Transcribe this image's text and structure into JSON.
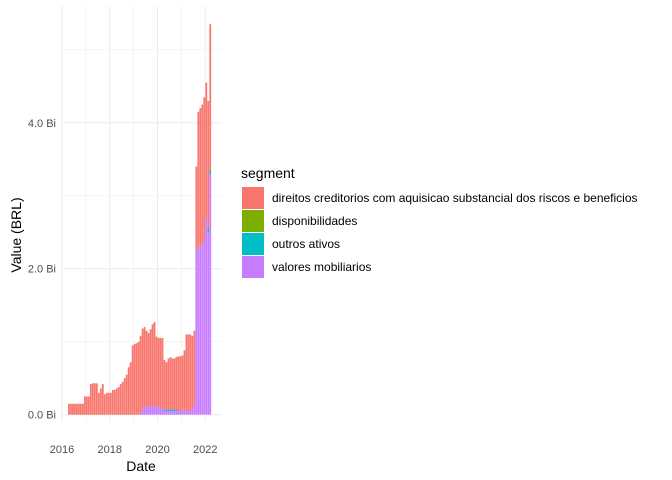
{
  "chart_data": {
    "type": "bar",
    "stacked": true,
    "xlabel": "Date",
    "ylabel": "Value (BRL)",
    "x_ticks": [
      "2016",
      "2018",
      "2020",
      "2022"
    ],
    "x_tick_values": [
      2016,
      2018,
      2020,
      2022
    ],
    "y_ticks": [
      "0.0 Bi",
      "2.0 Bi",
      "4.0 Bi"
    ],
    "y_tick_values": [
      0,
      2,
      4
    ],
    "xlim": [
      2016.0,
      2022.7
    ],
    "ylim": [
      -0.1,
      5.6
    ],
    "grid": true,
    "legend": {
      "title": "segment",
      "position": "right"
    },
    "series": [
      {
        "name": "direitos creditorios com aquisicao substancial dos riscos e beneficios",
        "color": "#F8766D"
      },
      {
        "name": "disponibilidades",
        "color": "#7CAE00"
      },
      {
        "name": "outros ativos",
        "color": "#00BFC4"
      },
      {
        "name": "valores mobiliarios",
        "color": "#C77CFF"
      }
    ],
    "x": [
      "2016-04",
      "2016-05",
      "2016-06",
      "2016-07",
      "2016-08",
      "2016-09",
      "2016-10",
      "2016-11",
      "2016-12",
      "2017-01",
      "2017-02",
      "2017-03",
      "2017-04",
      "2017-05",
      "2017-06",
      "2017-07",
      "2017-08",
      "2017-09",
      "2017-10",
      "2017-11",
      "2017-12",
      "2018-01",
      "2018-02",
      "2018-03",
      "2018-04",
      "2018-05",
      "2018-06",
      "2018-07",
      "2018-08",
      "2018-09",
      "2018-10",
      "2018-11",
      "2018-12",
      "2019-01",
      "2019-02",
      "2019-03",
      "2019-04",
      "2019-05",
      "2019-06",
      "2019-07",
      "2019-08",
      "2019-09",
      "2019-10",
      "2019-11",
      "2019-12",
      "2020-01",
      "2020-02",
      "2020-03",
      "2020-04",
      "2020-05",
      "2020-06",
      "2020-07",
      "2020-08",
      "2020-09",
      "2020-10",
      "2020-11",
      "2020-12",
      "2021-01",
      "2021-02",
      "2021-03",
      "2021-04",
      "2021-05",
      "2021-06",
      "2021-07",
      "2021-08",
      "2021-09",
      "2021-10",
      "2021-11",
      "2021-12",
      "2022-01",
      "2022-02",
      "2022-03"
    ],
    "stacks": [
      [
        0.15,
        0,
        0,
        0
      ],
      [
        0.15,
        0,
        0,
        0
      ],
      [
        0.15,
        0,
        0,
        0
      ],
      [
        0.15,
        0,
        0,
        0
      ],
      [
        0.15,
        0,
        0,
        0
      ],
      [
        0.15,
        0,
        0,
        0
      ],
      [
        0.15,
        0,
        0,
        0
      ],
      [
        0.15,
        0,
        0,
        0
      ],
      [
        0.25,
        0,
        0,
        0
      ],
      [
        0.25,
        0,
        0,
        0
      ],
      [
        0.25,
        0,
        0,
        0
      ],
      [
        0.42,
        0,
        0,
        0
      ],
      [
        0.43,
        0,
        0,
        0
      ],
      [
        0.43,
        0,
        0,
        0
      ],
      [
        0.43,
        0,
        0,
        0
      ],
      [
        0.3,
        0,
        0,
        0
      ],
      [
        0.36,
        0,
        0,
        0
      ],
      [
        0.42,
        0,
        0,
        0
      ],
      [
        0.28,
        0,
        0,
        0
      ],
      [
        0.3,
        0,
        0,
        0
      ],
      [
        0.3,
        0,
        0,
        0
      ],
      [
        0.3,
        0,
        0,
        0
      ],
      [
        0.34,
        0,
        0,
        0
      ],
      [
        0.34,
        0,
        0,
        0
      ],
      [
        0.36,
        0,
        0,
        0
      ],
      [
        0.38,
        0,
        0,
        0
      ],
      [
        0.42,
        0,
        0,
        0
      ],
      [
        0.45,
        0,
        0,
        0
      ],
      [
        0.5,
        0,
        0,
        0
      ],
      [
        0.55,
        0,
        0,
        0
      ],
      [
        0.65,
        0,
        0,
        0
      ],
      [
        0.72,
        0,
        0,
        0
      ],
      [
        0.95,
        0,
        0,
        0
      ],
      [
        0.97,
        0,
        0,
        0
      ],
      [
        0.98,
        0,
        0,
        0
      ],
      [
        1.0,
        0,
        0,
        0
      ],
      [
        1.05,
        0,
        0,
        0.03
      ],
      [
        1.1,
        0,
        0,
        0.08
      ],
      [
        1.1,
        0,
        0,
        0.1
      ],
      [
        1.05,
        0,
        0,
        0.1
      ],
      [
        1.0,
        0,
        0,
        0.12
      ],
      [
        1.05,
        0,
        0,
        0.12
      ],
      [
        1.12,
        0,
        0,
        0.12
      ],
      [
        1.15,
        0,
        0,
        0.12
      ],
      [
        0.95,
        0,
        0,
        0.12
      ],
      [
        0.95,
        0,
        0,
        0.1
      ],
      [
        0.95,
        0,
        0,
        0.1
      ],
      [
        0.97,
        0,
        0,
        0.08
      ],
      [
        0.68,
        0,
        0.02,
        0.05
      ],
      [
        0.65,
        0,
        0.02,
        0.05
      ],
      [
        0.7,
        0,
        0.02,
        0.05
      ],
      [
        0.72,
        0,
        0.02,
        0.05
      ],
      [
        0.7,
        0,
        0.02,
        0.05
      ],
      [
        0.7,
        0,
        0.02,
        0.05
      ],
      [
        0.72,
        0,
        0.02,
        0.05
      ],
      [
        0.75,
        0,
        0,
        0.05
      ],
      [
        0.75,
        0,
        0,
        0.05
      ],
      [
        0.75,
        0,
        0,
        0.06
      ],
      [
        0.8,
        0,
        0,
        0.08
      ],
      [
        1.05,
        0,
        0,
        0.05
      ],
      [
        1.05,
        0,
        0,
        0.05
      ],
      [
        1.05,
        0,
        0,
        0.05
      ],
      [
        1.0,
        0,
        0,
        0.08
      ],
      [
        1.0,
        0,
        0,
        0.15
      ],
      [
        1.15,
        0,
        0,
        2.25
      ],
      [
        1.85,
        0,
        0,
        2.3
      ],
      [
        1.9,
        0,
        0,
        2.3
      ],
      [
        1.9,
        0,
        0,
        2.35
      ],
      [
        1.95,
        0,
        0,
        2.4
      ],
      [
        1.85,
        0,
        0,
        2.7
      ],
      [
        1.75,
        0,
        0.05,
        2.5
      ],
      [
        2.0,
        0,
        0.05,
        3.3
      ]
    ]
  }
}
